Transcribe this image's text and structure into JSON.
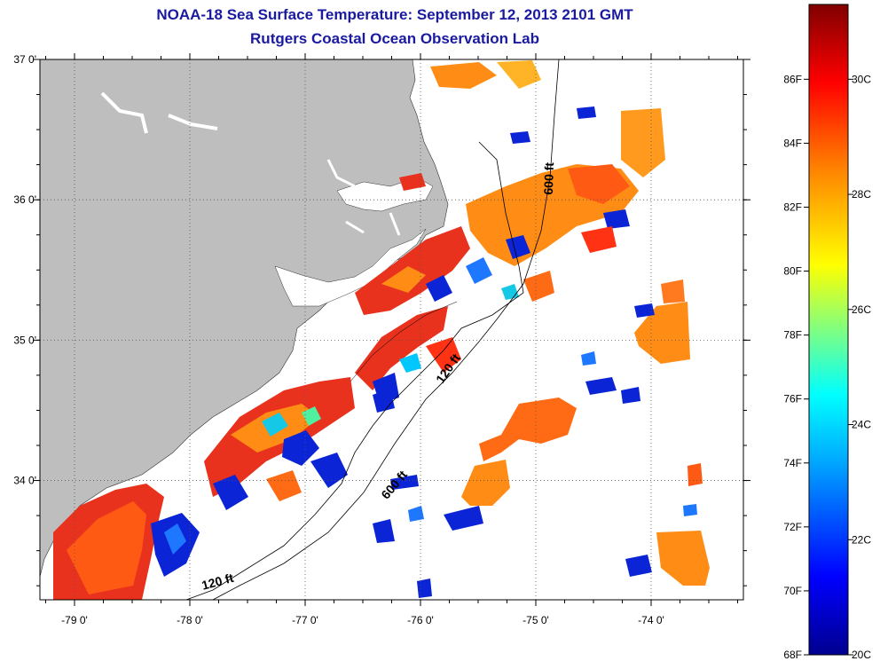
{
  "header": {
    "title": "NOAA-18 Sea Surface Temperature:  September 12, 2013 2101 GMT",
    "subtitle": "Rutgers Coastal Ocean Observation Lab"
  },
  "map": {
    "lon_range": [
      -79.3,
      -73.2
    ],
    "lat_range": [
      33.15,
      37.0
    ],
    "lon_ticks": [
      "-79 0'",
      "-78 0'",
      "-77 0'",
      "-76 0'",
      "-75 0'",
      "-74 0'"
    ],
    "lat_ticks": [
      "37 0'",
      "36 0'",
      "35 0'",
      "34 0'"
    ],
    "contours": [
      {
        "label": "600 ft",
        "lon": -74.85,
        "lat": 36.15
      },
      {
        "label": "120 ft",
        "lon": -75.73,
        "lat": 34.78
      },
      {
        "label": "600 ft",
        "lon": -76.2,
        "lat": 33.95
      },
      {
        "label": "120 ft",
        "lon": -77.75,
        "lat": 33.25
      }
    ],
    "colors": {
      "land": "#bebebe",
      "ocean_nodata": "#ffffff",
      "grid": "#555555"
    }
  },
  "colorbar": {
    "fahrenheit_labels": [
      "86F",
      "84F",
      "82F",
      "80F",
      "78F",
      "76F",
      "74F",
      "72F",
      "70F",
      "68F"
    ],
    "celsius_labels": [
      "30C",
      "28C",
      "26C",
      "24C",
      "22C",
      "20C"
    ],
    "range_c": [
      20,
      31.3
    ],
    "stops": [
      "#00008f",
      "#0000ff",
      "#00aaff",
      "#00ffff",
      "#80ff80",
      "#ffff00",
      "#ff8000",
      "#ff0000",
      "#800000"
    ]
  }
}
